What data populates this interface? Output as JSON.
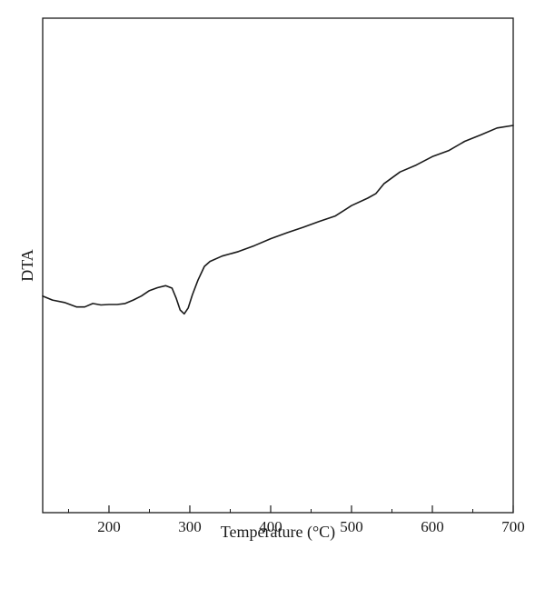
{
  "chart_data": {
    "type": "line",
    "title": "",
    "xlabel": "Temperature (°C)",
    "ylabel": "DTA",
    "xlim": [
      118,
      700
    ],
    "ylim": [
      0,
      100
    ],
    "xticks": [
      200,
      300,
      400,
      500,
      600,
      700
    ],
    "xtick_labels": [
      "200",
      "300",
      "400",
      "500",
      "600",
      "700"
    ],
    "minor_xticks": [
      150,
      250,
      350,
      450,
      550,
      650
    ],
    "show_yticks": false,
    "grid": false,
    "line_color": "#1a1a1a",
    "series": [
      {
        "x": [
          118,
          130,
          145,
          160,
          170,
          180,
          190,
          200,
          210,
          220,
          230,
          240,
          250,
          260,
          270,
          278,
          283,
          288,
          293,
          298,
          303,
          310,
          318,
          325,
          340,
          360,
          380,
          400,
          420,
          440,
          460,
          480,
          500,
          520,
          530,
          540,
          560,
          580,
          600,
          620,
          640,
          660,
          680,
          700
        ],
        "y": [
          43.8,
          43.0,
          42.5,
          41.6,
          41.6,
          42.3,
          42.0,
          42.1,
          42.1,
          42.3,
          43.0,
          43.8,
          44.9,
          45.5,
          45.9,
          45.4,
          43.4,
          41.0,
          40.2,
          41.4,
          44.0,
          47.0,
          49.8,
          50.8,
          51.9,
          52.8,
          54.0,
          55.4,
          56.6,
          57.7,
          58.9,
          60.0,
          62.1,
          63.6,
          64.5,
          66.5,
          68.9,
          70.3,
          72.0,
          73.2,
          75.1,
          76.4,
          77.8,
          78.3
        ]
      }
    ]
  }
}
